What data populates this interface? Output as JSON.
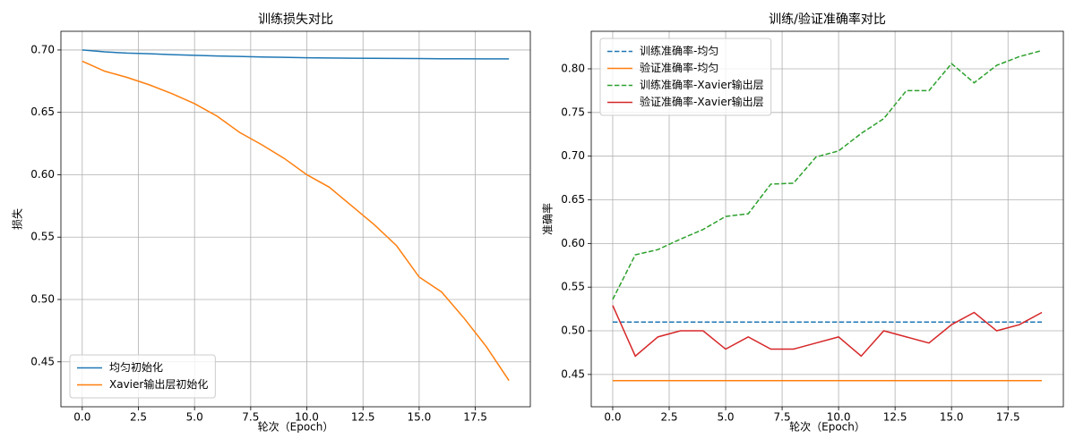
{
  "chart_data": [
    {
      "type": "line",
      "title": "训练损失对比",
      "xlabel": "轮次（Epoch）",
      "ylabel": "损失",
      "x": [
        0,
        1,
        2,
        3,
        4,
        5,
        6,
        7,
        8,
        9,
        10,
        11,
        12,
        13,
        14,
        15,
        16,
        17,
        18,
        19
      ],
      "series": [
        {
          "name": "均匀初始化",
          "color": "#1f77b4",
          "linestyle": "solid",
          "values": [
            0.7,
            0.6985,
            0.6975,
            0.697,
            0.6963,
            0.6957,
            0.6952,
            0.6948,
            0.6944,
            0.6941,
            0.6938,
            0.6936,
            0.6934,
            0.6933,
            0.6932,
            0.6931,
            0.693,
            0.693,
            0.6929,
            0.6929
          ]
        },
        {
          "name": "Xavier输出层初始化",
          "color": "#ff7f0e",
          "linestyle": "solid",
          "values": [
            0.691,
            0.683,
            0.678,
            0.672,
            0.665,
            0.657,
            0.647,
            0.634,
            0.624,
            0.613,
            0.6,
            0.59,
            0.575,
            0.56,
            0.543,
            0.518,
            0.506,
            0.485,
            0.462,
            0.435
          ]
        }
      ],
      "xlim": [
        -0.95,
        19.95
      ],
      "ylim": [
        0.414,
        0.715
      ],
      "xticks": [
        {
          "value": 0,
          "label": "0.0"
        },
        {
          "value": 2.5,
          "label": "2.5"
        },
        {
          "value": 5,
          "label": "5.0"
        },
        {
          "value": 7.5,
          "label": "7.5"
        },
        {
          "value": 10,
          "label": "10.0"
        },
        {
          "value": 12.5,
          "label": "12.5"
        },
        {
          "value": 15,
          "label": "15.0"
        },
        {
          "value": 17.5,
          "label": "17.5"
        }
      ],
      "yticks": [
        0.45,
        {
          "value": 0.5,
          "label": "0.50"
        },
        0.55,
        {
          "value": 0.6,
          "label": "0.60"
        },
        0.65,
        {
          "value": 0.7,
          "label": "0.70"
        }
      ],
      "grid": true,
      "legend": "lower left"
    },
    {
      "type": "line",
      "title": "训练/验证准确率对比",
      "xlabel": "轮次（Epoch）",
      "ylabel": "准确率",
      "x": [
        0,
        1,
        2,
        3,
        4,
        5,
        6,
        7,
        8,
        9,
        10,
        11,
        12,
        13,
        14,
        15,
        16,
        17,
        18,
        19
      ],
      "series": [
        {
          "name": "训练准确率-均匀",
          "color": "#1f77b4",
          "linestyle": "dashed",
          "values": [
            0.51,
            0.51,
            0.51,
            0.51,
            0.51,
            0.51,
            0.51,
            0.51,
            0.51,
            0.51,
            0.51,
            0.51,
            0.51,
            0.51,
            0.51,
            0.51,
            0.51,
            0.51,
            0.51,
            0.51
          ]
        },
        {
          "name": "验证准确率-均匀",
          "color": "#ff7f0e",
          "linestyle": "solid",
          "values": [
            0.443,
            0.443,
            0.443,
            0.443,
            0.443,
            0.443,
            0.443,
            0.443,
            0.443,
            0.443,
            0.443,
            0.443,
            0.443,
            0.443,
            0.443,
            0.443,
            0.443,
            0.443,
            0.443,
            0.443
          ]
        },
        {
          "name": "训练准确率-Xavier输出层",
          "color": "#2ca02c",
          "linestyle": "dashed",
          "values": [
            0.536,
            0.587,
            0.593,
            0.605,
            0.616,
            0.631,
            0.634,
            0.668,
            0.669,
            0.699,
            0.706,
            0.726,
            0.743,
            0.775,
            0.775,
            0.806,
            0.784,
            0.804,
            0.814,
            0.821
          ]
        },
        {
          "name": "验证准确率-Xavier输出层",
          "color": "#d62728",
          "linestyle": "solid",
          "values": [
            0.529,
            0.471,
            0.493,
            0.5,
            0.5,
            0.479,
            0.493,
            0.479,
            0.479,
            0.486,
            0.493,
            0.471,
            0.5,
            0.493,
            0.486,
            0.507,
            0.521,
            0.5,
            0.507,
            0.521
          ]
        }
      ],
      "xlim": [
        -0.95,
        19.95
      ],
      "ylim": [
        0.413,
        0.843
      ],
      "xticks": [
        {
          "value": 0,
          "label": "0.0"
        },
        {
          "value": 2.5,
          "label": "2.5"
        },
        {
          "value": 5,
          "label": "5.0"
        },
        {
          "value": 7.5,
          "label": "7.5"
        },
        {
          "value": 10,
          "label": "10.0"
        },
        {
          "value": 12.5,
          "label": "12.5"
        },
        {
          "value": 15,
          "label": "15.0"
        },
        {
          "value": 17.5,
          "label": "17.5"
        }
      ],
      "yticks": [
        0.45,
        {
          "value": 0.5,
          "label": "0.50"
        },
        0.55,
        {
          "value": 0.6,
          "label": "0.60"
        },
        0.65,
        {
          "value": 0.7,
          "label": "0.70"
        },
        0.75,
        {
          "value": 0.8,
          "label": "0.80"
        }
      ],
      "grid": true,
      "legend": "upper left"
    }
  ]
}
